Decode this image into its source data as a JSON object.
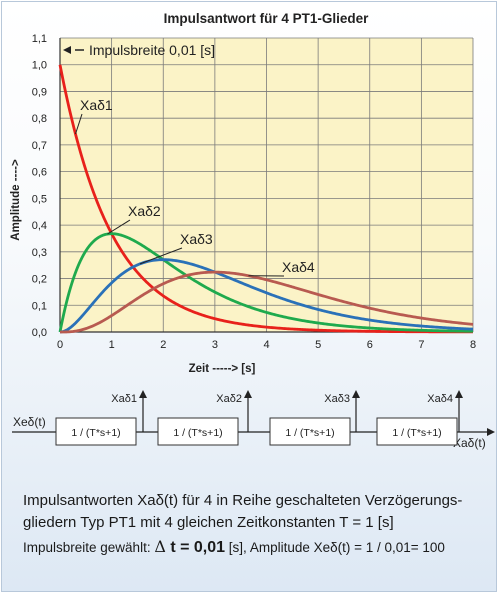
{
  "chart_data": {
    "type": "line",
    "title": "Impulsantwort  für 4  PT1-Glieder",
    "xlabel": "Zeit -----> [s]",
    "ylabel": "Amplitude ---->",
    "xlim": [
      0,
      8
    ],
    "ylim": [
      0,
      1.1
    ],
    "x_ticks": [
      "0",
      "1",
      "2",
      "3",
      "4",
      "5",
      "6",
      "7",
      "8"
    ],
    "y_ticks": [
      "0,0",
      "0,1",
      "0,2",
      "0,3",
      "0,4",
      "0,5",
      "0,6",
      "0,7",
      "0,8",
      "0,9",
      "1,0",
      "1,1"
    ],
    "grid": true,
    "annotation": "Impulsbreite  0,01  [s]",
    "series": [
      {
        "name": "Xaδ1",
        "order": 1,
        "color": "#e8211b",
        "x": [
          0,
          0.5,
          1,
          1.5,
          2,
          2.5,
          3,
          4,
          5,
          6,
          7,
          8
        ],
        "y": [
          1.0,
          0.607,
          0.368,
          0.223,
          0.135,
          0.082,
          0.05,
          0.018,
          0.007,
          0.002,
          0.001,
          0.0
        ]
      },
      {
        "name": "Xaδ2",
        "order": 2,
        "color": "#1faa4d",
        "x": [
          0,
          0.5,
          1,
          1.5,
          2,
          2.5,
          3,
          4,
          5,
          6,
          7,
          8
        ],
        "y": [
          0.0,
          0.303,
          0.368,
          0.335,
          0.271,
          0.205,
          0.149,
          0.073,
          0.034,
          0.015,
          0.006,
          0.003
        ]
      },
      {
        "name": "Xaδ3",
        "order": 3,
        "color": "#2a71b8",
        "x": [
          0,
          0.5,
          1,
          1.5,
          2,
          2.5,
          3,
          4,
          5,
          6,
          7,
          8
        ],
        "y": [
          0.0,
          0.076,
          0.184,
          0.251,
          0.271,
          0.257,
          0.224,
          0.147,
          0.084,
          0.045,
          0.022,
          0.011
        ]
      },
      {
        "name": "Xaδ4",
        "order": 4,
        "color": "#b85a50",
        "x": [
          0,
          0.5,
          1,
          1.5,
          2,
          2.5,
          3,
          4,
          5,
          6,
          7,
          8
        ],
        "y": [
          0.0,
          0.013,
          0.061,
          0.126,
          0.18,
          0.214,
          0.224,
          0.195,
          0.14,
          0.089,
          0.052,
          0.029
        ]
      }
    ]
  },
  "diagram": {
    "input_label": "Xeδ(t)",
    "output_label": "Xaδ(t)",
    "block_label": "1 / (T*s+1)",
    "taps": [
      "Xaδ1",
      "Xaδ2",
      "Xaδ3",
      "Xaδ4"
    ]
  },
  "caption": {
    "line1": "Impulsantworten Xaδ(t)  für 4 in Reihe geschalteten Verzögerungs-",
    "line2": "gliedern Typ PT1 mit 4 gleichen Zeitkonstanten  T = 1 [s]",
    "line3_prefix": "Impulsbreite gewählt: ",
    "line3_delta": "Δ",
    "line3_value": " t = 0,01",
    "line3_unit": " [s],   ",
    "line3_amp": "Amplitude Xeδ(t) = 1 / 0,01= 100"
  }
}
